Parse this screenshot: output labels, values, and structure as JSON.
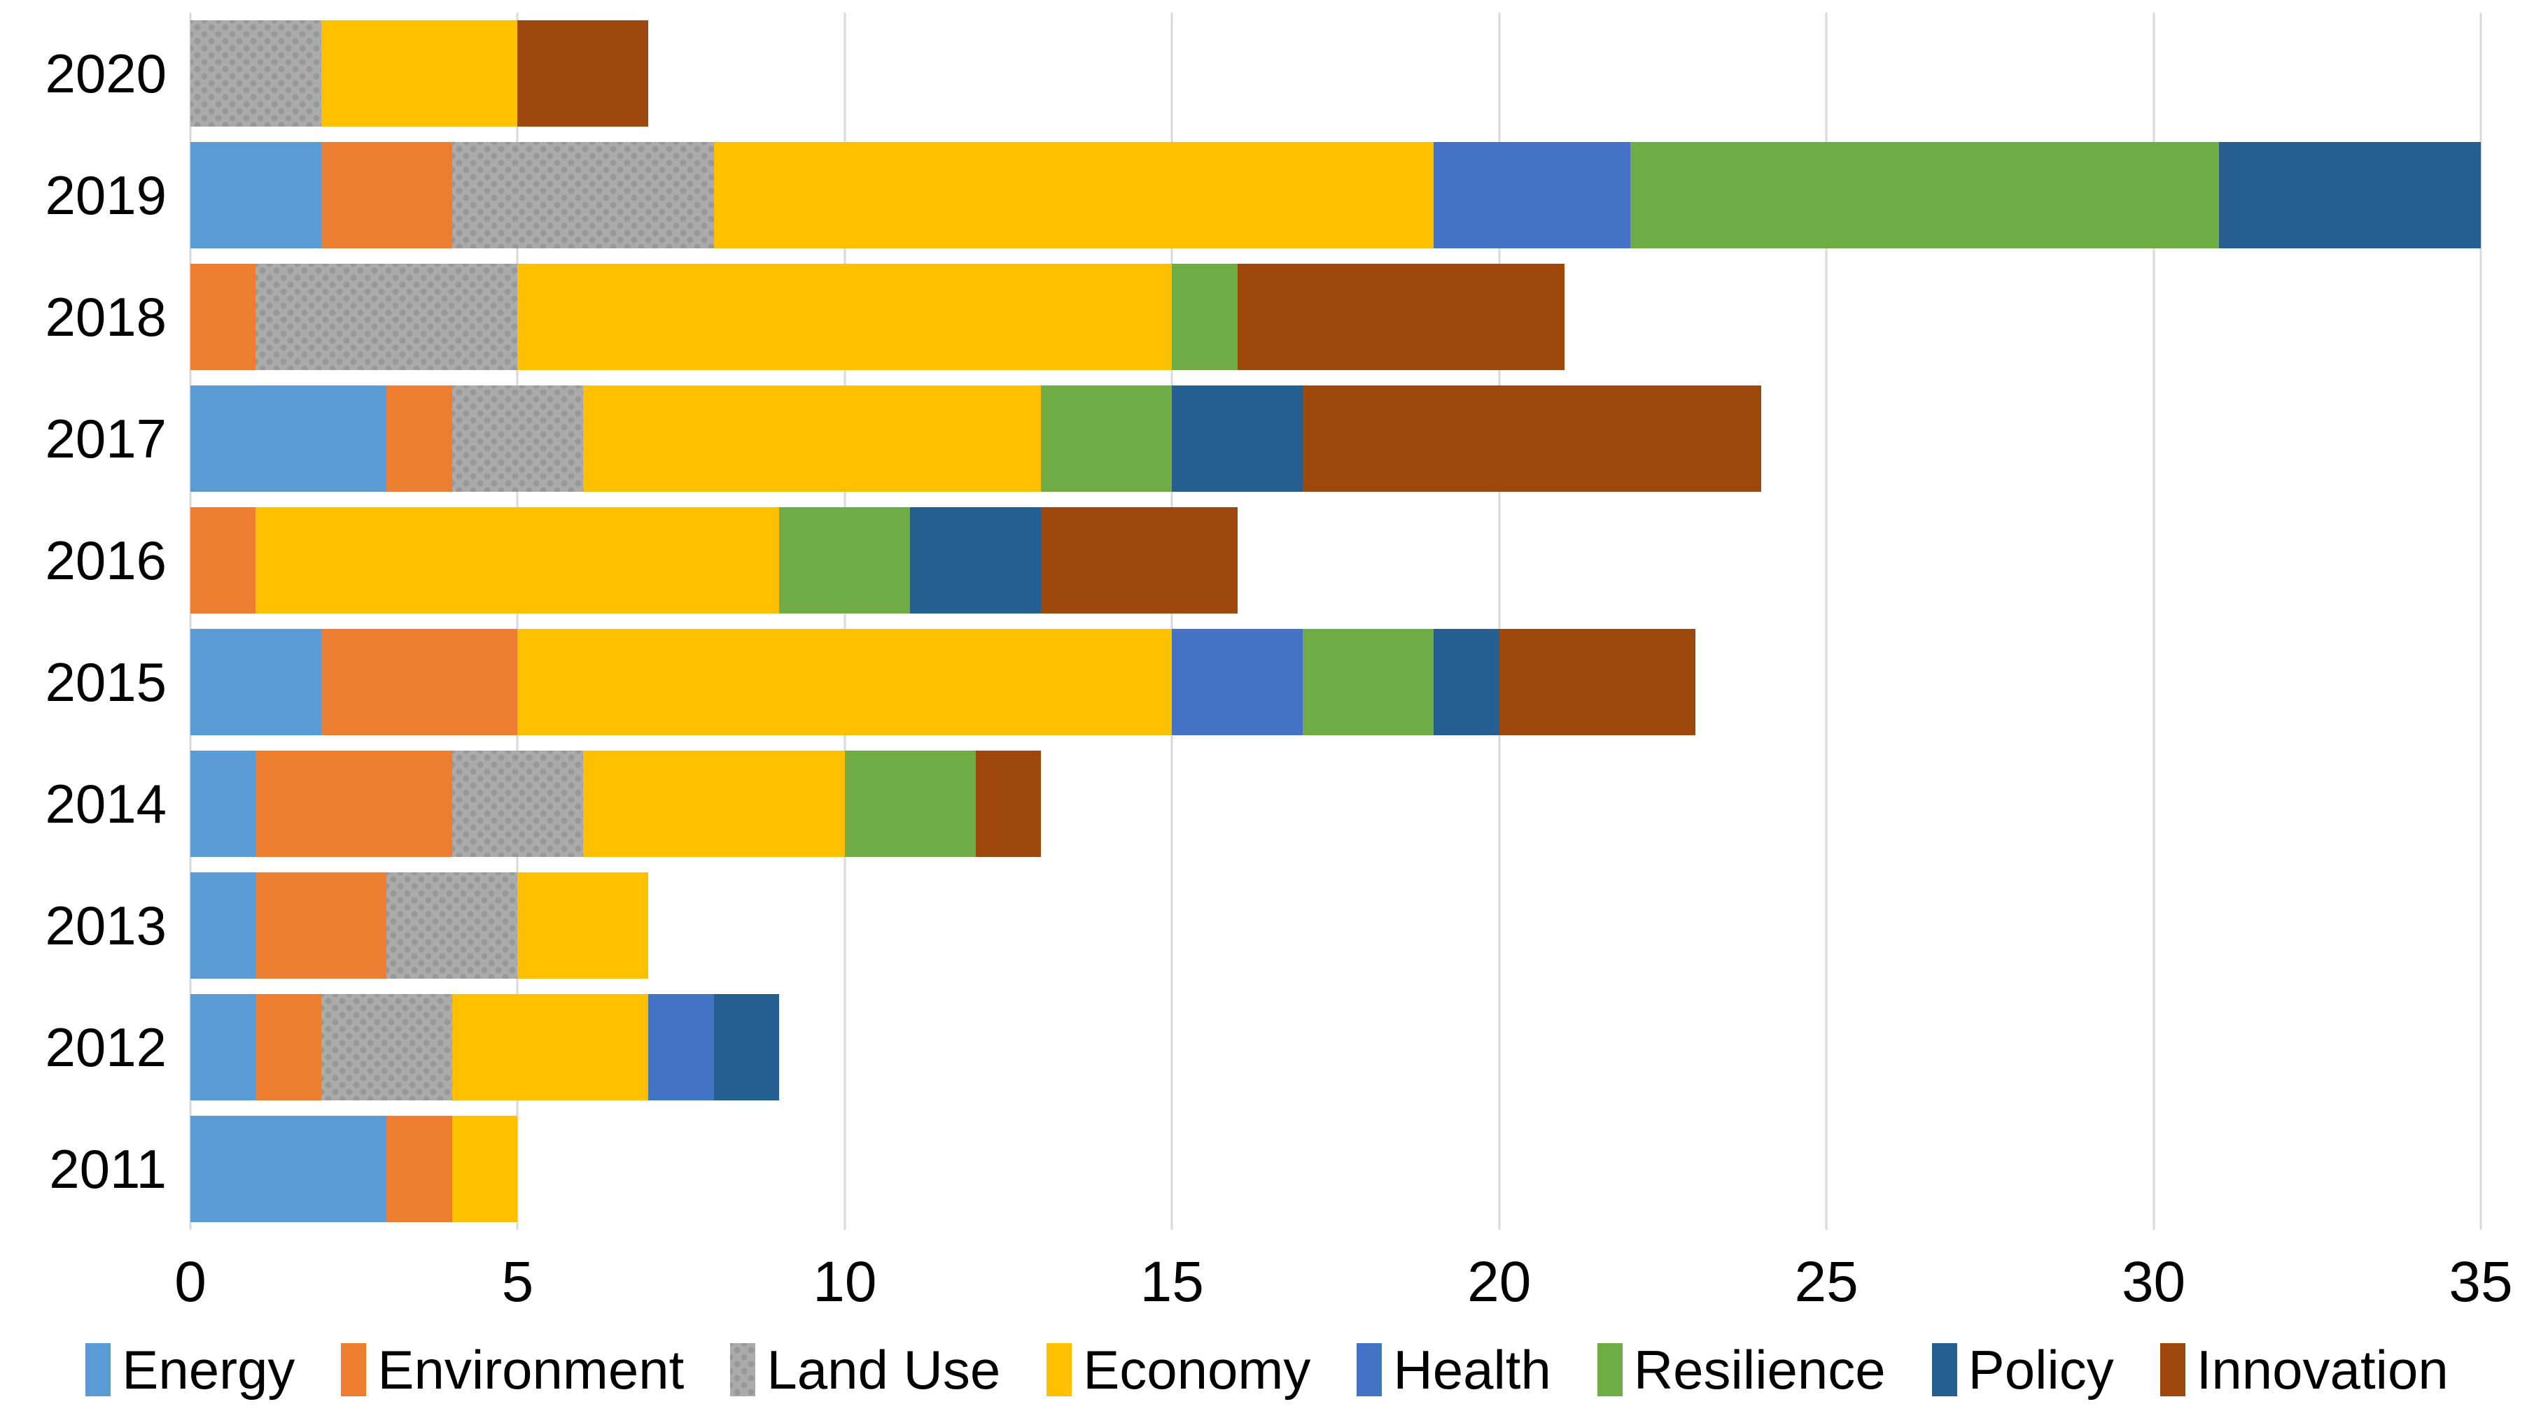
{
  "chart_data": {
    "type": "bar",
    "orientation": "horizontal",
    "stacked": true,
    "title": "",
    "xlabel": "",
    "ylabel": "",
    "categories": [
      "2020",
      "2019",
      "2018",
      "2017",
      "2016",
      "2015",
      "2014",
      "2013",
      "2012",
      "2011"
    ],
    "series": [
      {
        "name": "Energy",
        "color": "#5B9BD5",
        "pattern": false,
        "values": [
          0,
          2,
          0,
          3,
          0,
          2,
          1,
          1,
          1,
          3
        ]
      },
      {
        "name": "Environment",
        "color": "#ED7D31",
        "pattern": false,
        "values": [
          0,
          2,
          1,
          1,
          1,
          3,
          3,
          2,
          1,
          1
        ]
      },
      {
        "name": "Land Use",
        "color": "#ABABAB",
        "pattern": true,
        "values": [
          2,
          4,
          4,
          2,
          0,
          0,
          2,
          2,
          2,
          0
        ]
      },
      {
        "name": "Economy",
        "color": "#FFC000",
        "pattern": false,
        "values": [
          3,
          11,
          10,
          7,
          8,
          10,
          4,
          2,
          3,
          1
        ]
      },
      {
        "name": "Health",
        "color": "#4472C4",
        "pattern": false,
        "values": [
          0,
          3,
          0,
          0,
          0,
          2,
          0,
          0,
          1,
          0
        ]
      },
      {
        "name": "Resilience",
        "color": "#6FAC46",
        "pattern": false,
        "values": [
          0,
          9,
          1,
          2,
          2,
          2,
          2,
          0,
          0,
          0
        ]
      },
      {
        "name": "Policy",
        "color": "#255E91",
        "pattern": false,
        "values": [
          0,
          4,
          0,
          2,
          2,
          1,
          0,
          0,
          1,
          0
        ]
      },
      {
        "name": "Innovation",
        "color": "#9E480E",
        "pattern": false,
        "values": [
          2,
          0,
          5,
          7,
          3,
          3,
          1,
          0,
          0,
          0
        ]
      }
    ],
    "totals": [
      7,
      35,
      21,
      24,
      16,
      23,
      13,
      7,
      9,
      5
    ],
    "x_ticks": [
      0,
      5,
      10,
      15,
      20,
      25,
      30,
      35
    ],
    "xlim": [
      0,
      35
    ],
    "grid": true,
    "gridline_color": "#D9D9D9",
    "legend_position": "bottom"
  }
}
